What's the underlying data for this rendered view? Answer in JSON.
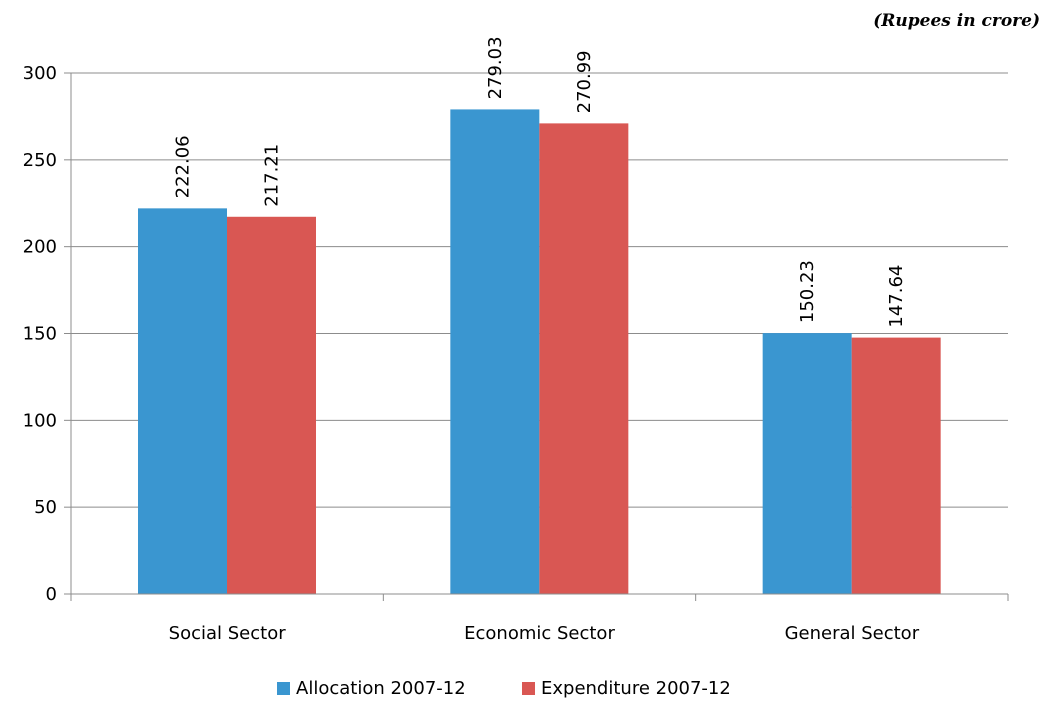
{
  "chart_data": {
    "type": "bar",
    "unit_note": "(Rupees in crore)",
    "categories": [
      "Social Sector",
      "Economic Sector",
      "General Sector"
    ],
    "series": [
      {
        "name": "Allocation 2007-12",
        "color": "#3a96d0",
        "values": [
          222.06,
          279.03,
          150.23
        ],
        "labels": [
          "222.06",
          "279.03",
          "150.23"
        ]
      },
      {
        "name": "Expenditure 2007-12",
        "color": "#d95753",
        "values": [
          217.21,
          270.99,
          147.64
        ],
        "labels": [
          "217.21",
          "270.99",
          "147.64"
        ]
      }
    ],
    "ylim": [
      0,
      300
    ],
    "yticks": [
      0,
      50,
      100,
      150,
      200,
      250,
      300
    ],
    "ytick_labels": [
      "0",
      "50",
      "100",
      "150",
      "200",
      "250",
      "300"
    ],
    "grid": true,
    "legend_position": "bottom"
  }
}
